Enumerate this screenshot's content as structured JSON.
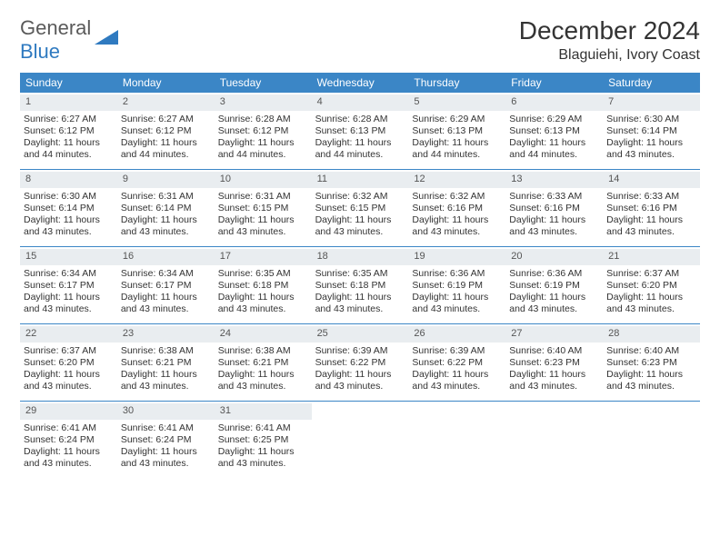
{
  "logo": {
    "word1": "General",
    "word2": "Blue"
  },
  "title": "December 2024",
  "location": "Blaguiehi, Ivory Coast",
  "colors": {
    "header_bg": "#3b86c6",
    "header_text": "#ffffff",
    "daynum_bg": "#e9edf0",
    "border": "#3b86c6",
    "text": "#333333",
    "logo_gray": "#5a5a5a",
    "logo_blue": "#2f7ac0"
  },
  "day_names": [
    "Sunday",
    "Monday",
    "Tuesday",
    "Wednesday",
    "Thursday",
    "Friday",
    "Saturday"
  ],
  "weeks": [
    [
      {
        "n": "1",
        "sr": "6:27 AM",
        "ss": "6:12 PM",
        "dl": "11 hours and 44 minutes."
      },
      {
        "n": "2",
        "sr": "6:27 AM",
        "ss": "6:12 PM",
        "dl": "11 hours and 44 minutes."
      },
      {
        "n": "3",
        "sr": "6:28 AM",
        "ss": "6:12 PM",
        "dl": "11 hours and 44 minutes."
      },
      {
        "n": "4",
        "sr": "6:28 AM",
        "ss": "6:13 PM",
        "dl": "11 hours and 44 minutes."
      },
      {
        "n": "5",
        "sr": "6:29 AM",
        "ss": "6:13 PM",
        "dl": "11 hours and 44 minutes."
      },
      {
        "n": "6",
        "sr": "6:29 AM",
        "ss": "6:13 PM",
        "dl": "11 hours and 44 minutes."
      },
      {
        "n": "7",
        "sr": "6:30 AM",
        "ss": "6:14 PM",
        "dl": "11 hours and 43 minutes."
      }
    ],
    [
      {
        "n": "8",
        "sr": "6:30 AM",
        "ss": "6:14 PM",
        "dl": "11 hours and 43 minutes."
      },
      {
        "n": "9",
        "sr": "6:31 AM",
        "ss": "6:14 PM",
        "dl": "11 hours and 43 minutes."
      },
      {
        "n": "10",
        "sr": "6:31 AM",
        "ss": "6:15 PM",
        "dl": "11 hours and 43 minutes."
      },
      {
        "n": "11",
        "sr": "6:32 AM",
        "ss": "6:15 PM",
        "dl": "11 hours and 43 minutes."
      },
      {
        "n": "12",
        "sr": "6:32 AM",
        "ss": "6:16 PM",
        "dl": "11 hours and 43 minutes."
      },
      {
        "n": "13",
        "sr": "6:33 AM",
        "ss": "6:16 PM",
        "dl": "11 hours and 43 minutes."
      },
      {
        "n": "14",
        "sr": "6:33 AM",
        "ss": "6:16 PM",
        "dl": "11 hours and 43 minutes."
      }
    ],
    [
      {
        "n": "15",
        "sr": "6:34 AM",
        "ss": "6:17 PM",
        "dl": "11 hours and 43 minutes."
      },
      {
        "n": "16",
        "sr": "6:34 AM",
        "ss": "6:17 PM",
        "dl": "11 hours and 43 minutes."
      },
      {
        "n": "17",
        "sr": "6:35 AM",
        "ss": "6:18 PM",
        "dl": "11 hours and 43 minutes."
      },
      {
        "n": "18",
        "sr": "6:35 AM",
        "ss": "6:18 PM",
        "dl": "11 hours and 43 minutes."
      },
      {
        "n": "19",
        "sr": "6:36 AM",
        "ss": "6:19 PM",
        "dl": "11 hours and 43 minutes."
      },
      {
        "n": "20",
        "sr": "6:36 AM",
        "ss": "6:19 PM",
        "dl": "11 hours and 43 minutes."
      },
      {
        "n": "21",
        "sr": "6:37 AM",
        "ss": "6:20 PM",
        "dl": "11 hours and 43 minutes."
      }
    ],
    [
      {
        "n": "22",
        "sr": "6:37 AM",
        "ss": "6:20 PM",
        "dl": "11 hours and 43 minutes."
      },
      {
        "n": "23",
        "sr": "6:38 AM",
        "ss": "6:21 PM",
        "dl": "11 hours and 43 minutes."
      },
      {
        "n": "24",
        "sr": "6:38 AM",
        "ss": "6:21 PM",
        "dl": "11 hours and 43 minutes."
      },
      {
        "n": "25",
        "sr": "6:39 AM",
        "ss": "6:22 PM",
        "dl": "11 hours and 43 minutes."
      },
      {
        "n": "26",
        "sr": "6:39 AM",
        "ss": "6:22 PM",
        "dl": "11 hours and 43 minutes."
      },
      {
        "n": "27",
        "sr": "6:40 AM",
        "ss": "6:23 PM",
        "dl": "11 hours and 43 minutes."
      },
      {
        "n": "28",
        "sr": "6:40 AM",
        "ss": "6:23 PM",
        "dl": "11 hours and 43 minutes."
      }
    ],
    [
      {
        "n": "29",
        "sr": "6:41 AM",
        "ss": "6:24 PM",
        "dl": "11 hours and 43 minutes."
      },
      {
        "n": "30",
        "sr": "6:41 AM",
        "ss": "6:24 PM",
        "dl": "11 hours and 43 minutes."
      },
      {
        "n": "31",
        "sr": "6:41 AM",
        "ss": "6:25 PM",
        "dl": "11 hours and 43 minutes."
      },
      null,
      null,
      null,
      null
    ]
  ],
  "labels": {
    "sunrise": "Sunrise:",
    "sunset": "Sunset:",
    "daylight": "Daylight:"
  }
}
